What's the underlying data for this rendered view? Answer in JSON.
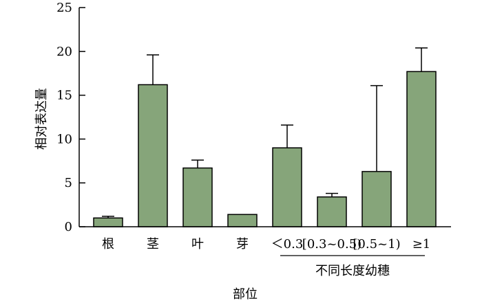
{
  "chart_data": {
    "type": "bar",
    "categories": [
      "根",
      "茎",
      "叶",
      "芽",
      "＜0.3",
      "[0.3~0.5)",
      "[0.5~1)",
      "≥1"
    ],
    "values": [
      1.0,
      16.2,
      6.7,
      1.4,
      9.0,
      3.4,
      6.3,
      17.7
    ],
    "error_upper": [
      1.2,
      19.6,
      7.6,
      1.4,
      11.6,
      3.8,
      16.1,
      20.4
    ],
    "group_label": "不同长度幼穗",
    "group_categories": [
      "＜0.3",
      "[0.3~0.5)",
      "[0.5~1)",
      "≥1"
    ],
    "xlabel": "部位",
    "ylabel": "相对表达量",
    "ylim": [
      0,
      25
    ],
    "yticks": [
      0,
      5,
      10,
      15,
      20,
      25
    ],
    "grid": false,
    "colors": {
      "bar_fill": "#86a57a",
      "bar_stroke": "#000000"
    }
  }
}
